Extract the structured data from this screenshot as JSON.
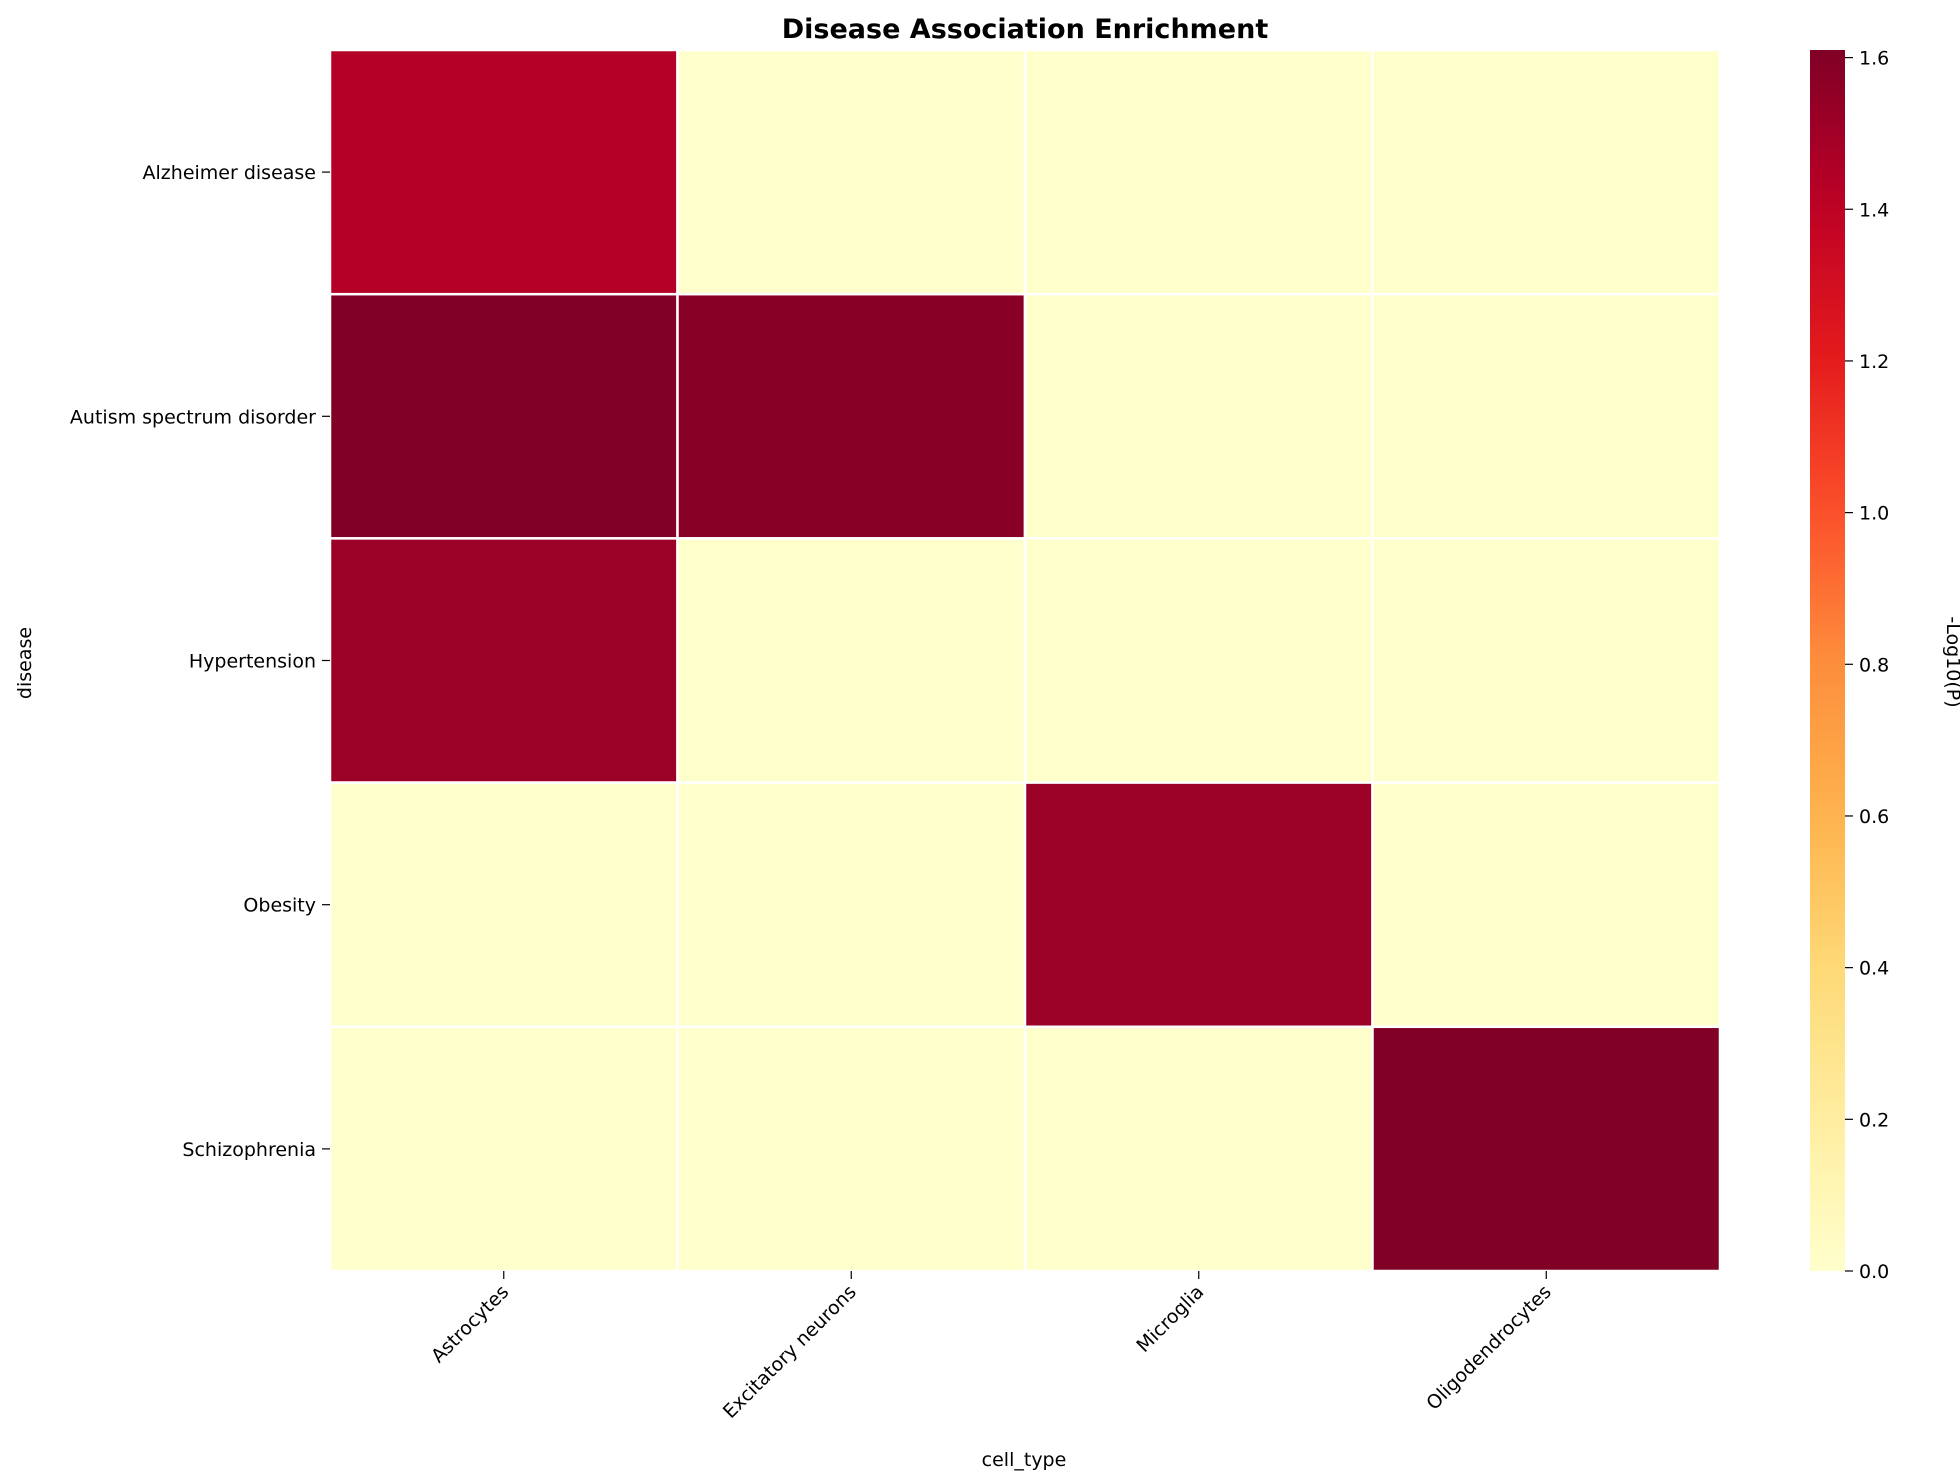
{
  "chart_data": {
    "type": "heatmap",
    "title": "Disease Association Enrichment",
    "xlabel": "cell_type",
    "ylabel": "disease",
    "x_categories": [
      "Astrocytes",
      "Excitatory neurons",
      "Microglia",
      "Oligodendrocytes"
    ],
    "y_categories": [
      "Alzheimer disease",
      "Autism spectrum disorder",
      "Hypertension",
      "Obesity",
      "Schizophrenia"
    ],
    "values": [
      [
        1.44,
        0.0,
        0.0,
        0.0
      ],
      [
        1.61,
        1.58,
        0.0,
        0.0
      ],
      [
        1.52,
        0.0,
        0.0,
        0.0
      ],
      [
        0.0,
        0.0,
        1.52,
        0.0
      ],
      [
        0.0,
        0.0,
        0.0,
        1.61
      ]
    ],
    "colorbar": {
      "label": "-Log10(P)",
      "range": [
        0.0,
        1.61
      ],
      "ticks": [
        "0.0",
        "0.2",
        "0.4",
        "0.6",
        "0.8",
        "1.0",
        "1.2",
        "1.4",
        "1.6"
      ],
      "colormap": "YlOrRd"
    },
    "grid_line_color": "#ffffff"
  }
}
